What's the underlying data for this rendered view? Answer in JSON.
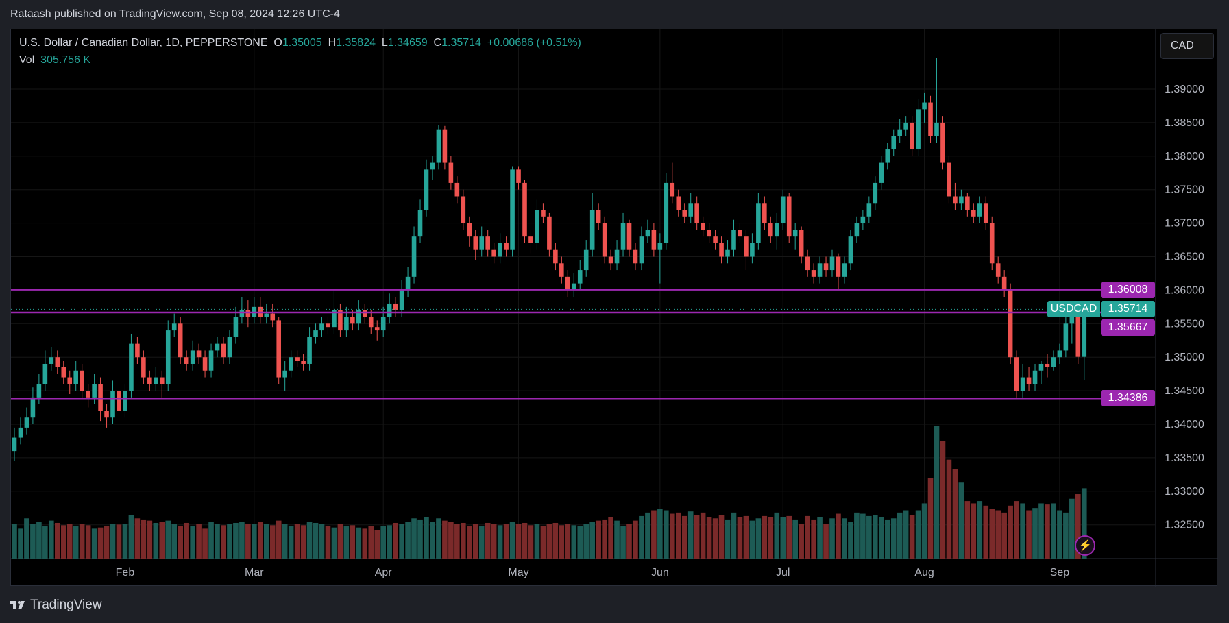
{
  "header": {
    "published": "Rataash published on TradingView.com, Sep 08, 2024 12:26 UTC-4"
  },
  "legend": {
    "symbol": "U.S. Dollar / Canadian Dollar, 1D, PEPPERSTONE",
    "o_label": "O",
    "o": "1.35005",
    "h_label": "H",
    "h": "1.35824",
    "l_label": "L",
    "l": "1.34659",
    "c_label": "C",
    "c": "1.35714",
    "change": "+0.00686 (+0.51%)",
    "vol_label": "Vol",
    "vol": "305.756 K"
  },
  "currency_button": "CAD",
  "symbol_tag": "USDCAD",
  "footer": {
    "brand": "TradingView"
  },
  "colors": {
    "up": "#26a69a",
    "down": "#ef5350",
    "level": "#9c27b0",
    "vol_up": "#1d5b55",
    "vol_down": "#7b2a2a"
  },
  "price_labels": [
    {
      "value": "1.36008",
      "color": "#9c27b0"
    },
    {
      "value": "1.35714",
      "color": "#26a69a"
    },
    {
      "value": "1.35667",
      "color": "#9c27b0"
    },
    {
      "value": "1.34386",
      "color": "#9c27b0"
    }
  ],
  "chart_data": {
    "type": "candlestick",
    "y_ticks": [
      "1.39000",
      "1.38500",
      "1.38000",
      "1.37500",
      "1.37000",
      "1.36500",
      "1.36000",
      "1.35500",
      "1.35000",
      "1.34500",
      "1.34000",
      "1.33500",
      "1.33000",
      "1.32500"
    ],
    "ylim": [
      1.3215,
      1.3975
    ],
    "x_ticks": [
      {
        "label": "Feb",
        "index": 18
      },
      {
        "label": "Mar",
        "index": 39
      },
      {
        "label": "Apr",
        "index": 60
      },
      {
        "label": "May",
        "index": 82
      },
      {
        "label": "Jun",
        "index": 105
      },
      {
        "label": "Jul",
        "index": 125
      },
      {
        "label": "Aug",
        "index": 148
      },
      {
        "label": "Sep",
        "index": 170
      }
    ],
    "levels": [
      1.36008,
      1.35667,
      1.34386
    ],
    "last_price": 1.35714,
    "ohlc": [
      [
        1.336,
        1.3395,
        1.3345,
        1.338
      ],
      [
        1.338,
        1.341,
        1.337,
        1.3395
      ],
      [
        1.3395,
        1.3425,
        1.3385,
        1.341
      ],
      [
        1.341,
        1.3455,
        1.34,
        1.344
      ],
      [
        1.344,
        1.3475,
        1.343,
        1.346
      ],
      [
        1.346,
        1.351,
        1.345,
        1.349
      ],
      [
        1.349,
        1.3515,
        1.348,
        1.35
      ],
      [
        1.35,
        1.351,
        1.3475,
        1.3485
      ],
      [
        1.3485,
        1.3495,
        1.346,
        1.347
      ],
      [
        1.347,
        1.348,
        1.3445,
        1.346
      ],
      [
        1.346,
        1.3495,
        1.345,
        1.348
      ],
      [
        1.348,
        1.349,
        1.344,
        1.345
      ],
      [
        1.345,
        1.346,
        1.3425,
        1.344
      ],
      [
        1.344,
        1.3475,
        1.343,
        1.346
      ],
      [
        1.346,
        1.347,
        1.3405,
        1.342
      ],
      [
        1.342,
        1.343,
        1.3395,
        1.341
      ],
      [
        1.341,
        1.3465,
        1.34,
        1.345
      ],
      [
        1.345,
        1.346,
        1.34,
        1.342
      ],
      [
        1.342,
        1.346,
        1.341,
        1.345
      ],
      [
        1.345,
        1.3535,
        1.344,
        1.352
      ],
      [
        1.352,
        1.353,
        1.349,
        1.35
      ],
      [
        1.35,
        1.351,
        1.346,
        1.347
      ],
      [
        1.347,
        1.348,
        1.345,
        1.346
      ],
      [
        1.346,
        1.3485,
        1.345,
        1.347
      ],
      [
        1.347,
        1.348,
        1.344,
        1.346
      ],
      [
        1.346,
        1.3555,
        1.345,
        1.354
      ],
      [
        1.354,
        1.3565,
        1.353,
        1.355
      ],
      [
        1.355,
        1.356,
        1.349,
        1.35
      ],
      [
        1.35,
        1.351,
        1.348,
        1.349
      ],
      [
        1.349,
        1.3525,
        1.348,
        1.351
      ],
      [
        1.351,
        1.352,
        1.349,
        1.35
      ],
      [
        1.35,
        1.351,
        1.347,
        1.348
      ],
      [
        1.348,
        1.352,
        1.347,
        1.351
      ],
      [
        1.351,
        1.353,
        1.35,
        1.352
      ],
      [
        1.352,
        1.353,
        1.349,
        1.35
      ],
      [
        1.35,
        1.354,
        1.349,
        1.353
      ],
      [
        1.353,
        1.3575,
        1.352,
        1.356
      ],
      [
        1.356,
        1.359,
        1.355,
        1.357
      ],
      [
        1.357,
        1.3585,
        1.3545,
        1.356
      ],
      [
        1.356,
        1.359,
        1.355,
        1.3575
      ],
      [
        1.3575,
        1.359,
        1.355,
        1.356
      ],
      [
        1.356,
        1.358,
        1.355,
        1.3565
      ],
      [
        1.3565,
        1.358,
        1.3545,
        1.3555
      ],
      [
        1.3555,
        1.356,
        1.346,
        1.347
      ],
      [
        1.347,
        1.3495,
        1.345,
        1.348
      ],
      [
        1.348,
        1.351,
        1.347,
        1.35
      ],
      [
        1.35,
        1.351,
        1.3485,
        1.3495
      ],
      [
        1.3495,
        1.3505,
        1.348,
        1.349
      ],
      [
        1.349,
        1.3545,
        1.348,
        1.353
      ],
      [
        1.353,
        1.355,
        1.352,
        1.354
      ],
      [
        1.354,
        1.356,
        1.353,
        1.355
      ],
      [
        1.355,
        1.356,
        1.3535,
        1.3545
      ],
      [
        1.3545,
        1.36,
        1.3535,
        1.357
      ],
      [
        1.357,
        1.358,
        1.353,
        1.354
      ],
      [
        1.354,
        1.3575,
        1.353,
        1.356
      ],
      [
        1.356,
        1.357,
        1.354,
        1.355
      ],
      [
        1.355,
        1.3585,
        1.354,
        1.357
      ],
      [
        1.357,
        1.358,
        1.355,
        1.356
      ],
      [
        1.356,
        1.357,
        1.3535,
        1.3545
      ],
      [
        1.3545,
        1.3555,
        1.3525,
        1.354
      ],
      [
        1.354,
        1.3575,
        1.353,
        1.356
      ],
      [
        1.356,
        1.3595,
        1.355,
        1.358
      ],
      [
        1.358,
        1.359,
        1.356,
        1.357
      ],
      [
        1.357,
        1.3615,
        1.356,
        1.36
      ],
      [
        1.36,
        1.3635,
        1.359,
        1.362
      ],
      [
        1.362,
        1.3695,
        1.361,
        1.368
      ],
      [
        1.368,
        1.3735,
        1.367,
        1.372
      ],
      [
        1.372,
        1.3795,
        1.371,
        1.378
      ],
      [
        1.378,
        1.38,
        1.3765,
        1.379
      ],
      [
        1.379,
        1.3846,
        1.378,
        1.384
      ],
      [
        1.384,
        1.3845,
        1.378,
        1.379
      ],
      [
        1.379,
        1.38,
        1.375,
        1.376
      ],
      [
        1.376,
        1.377,
        1.373,
        1.374
      ],
      [
        1.374,
        1.375,
        1.369,
        1.37
      ],
      [
        1.37,
        1.371,
        1.3665,
        1.368
      ],
      [
        1.368,
        1.369,
        1.3645,
        1.366
      ],
      [
        1.366,
        1.3695,
        1.365,
        1.368
      ],
      [
        1.368,
        1.369,
        1.365,
        1.366
      ],
      [
        1.366,
        1.367,
        1.364,
        1.365
      ],
      [
        1.365,
        1.3685,
        1.364,
        1.367
      ],
      [
        1.367,
        1.368,
        1.365,
        1.366
      ],
      [
        1.366,
        1.3785,
        1.365,
        1.378
      ],
      [
        1.378,
        1.3785,
        1.375,
        1.376
      ],
      [
        1.376,
        1.3765,
        1.367,
        1.368
      ],
      [
        1.368,
        1.369,
        1.3655,
        1.367
      ],
      [
        1.367,
        1.3735,
        1.366,
        1.372
      ],
      [
        1.372,
        1.373,
        1.37,
        1.371
      ],
      [
        1.371,
        1.3715,
        1.365,
        1.366
      ],
      [
        1.366,
        1.367,
        1.363,
        1.364
      ],
      [
        1.364,
        1.365,
        1.361,
        1.362
      ],
      [
        1.362,
        1.363,
        1.359,
        1.36
      ],
      [
        1.36,
        1.3625,
        1.359,
        1.361
      ],
      [
        1.361,
        1.3645,
        1.36,
        1.363
      ],
      [
        1.363,
        1.3675,
        1.362,
        1.366
      ],
      [
        1.366,
        1.3745,
        1.365,
        1.372
      ],
      [
        1.372,
        1.373,
        1.369,
        1.37
      ],
      [
        1.37,
        1.371,
        1.364,
        1.365
      ],
      [
        1.365,
        1.366,
        1.363,
        1.364
      ],
      [
        1.364,
        1.3675,
        1.363,
        1.366
      ],
      [
        1.366,
        1.3715,
        1.365,
        1.37
      ],
      [
        1.37,
        1.3705,
        1.365,
        1.366
      ],
      [
        1.366,
        1.367,
        1.363,
        1.364
      ],
      [
        1.364,
        1.3695,
        1.363,
        1.368
      ],
      [
        1.368,
        1.3705,
        1.367,
        1.369
      ],
      [
        1.369,
        1.37,
        1.365,
        1.366
      ],
      [
        1.366,
        1.3685,
        1.361,
        1.367
      ],
      [
        1.367,
        1.3775,
        1.366,
        1.376
      ],
      [
        1.376,
        1.379,
        1.373,
        1.374
      ],
      [
        1.374,
        1.375,
        1.371,
        1.372
      ],
      [
        1.372,
        1.373,
        1.37,
        1.371
      ],
      [
        1.371,
        1.3745,
        1.37,
        1.373
      ],
      [
        1.373,
        1.374,
        1.369,
        1.37
      ],
      [
        1.37,
        1.371,
        1.368,
        1.369
      ],
      [
        1.369,
        1.37,
        1.367,
        1.368
      ],
      [
        1.368,
        1.369,
        1.366,
        1.367
      ],
      [
        1.367,
        1.368,
        1.364,
        1.365
      ],
      [
        1.365,
        1.3675,
        1.364,
        1.366
      ],
      [
        1.366,
        1.3705,
        1.365,
        1.369
      ],
      [
        1.369,
        1.37,
        1.367,
        1.368
      ],
      [
        1.368,
        1.369,
        1.363,
        1.365
      ],
      [
        1.365,
        1.3685,
        1.364,
        1.367
      ],
      [
        1.367,
        1.3745,
        1.366,
        1.373
      ],
      [
        1.373,
        1.374,
        1.369,
        1.37
      ],
      [
        1.37,
        1.371,
        1.367,
        1.368
      ],
      [
        1.368,
        1.3715,
        1.366,
        1.37
      ],
      [
        1.37,
        1.375,
        1.369,
        1.374
      ],
      [
        1.374,
        1.3745,
        1.367,
        1.368
      ],
      [
        1.368,
        1.37,
        1.366,
        1.369
      ],
      [
        1.369,
        1.3695,
        1.364,
        1.365
      ],
      [
        1.365,
        1.366,
        1.362,
        1.363
      ],
      [
        1.363,
        1.364,
        1.361,
        1.362
      ],
      [
        1.362,
        1.365,
        1.361,
        1.364
      ],
      [
        1.364,
        1.365,
        1.362,
        1.363
      ],
      [
        1.363,
        1.366,
        1.362,
        1.365
      ],
      [
        1.365,
        1.3655,
        1.36,
        1.362
      ],
      [
        1.362,
        1.365,
        1.361,
        1.364
      ],
      [
        1.364,
        1.369,
        1.363,
        1.368
      ],
      [
        1.368,
        1.371,
        1.367,
        1.37
      ],
      [
        1.37,
        1.372,
        1.369,
        1.371
      ],
      [
        1.371,
        1.374,
        1.37,
        1.373
      ],
      [
        1.373,
        1.377,
        1.372,
        1.376
      ],
      [
        1.376,
        1.38,
        1.375,
        1.379
      ],
      [
        1.379,
        1.382,
        1.378,
        1.381
      ],
      [
        1.381,
        1.384,
        1.38,
        1.383
      ],
      [
        1.383,
        1.3855,
        1.382,
        1.384
      ],
      [
        1.384,
        1.386,
        1.383,
        1.385
      ],
      [
        1.385,
        1.386,
        1.38,
        1.381
      ],
      [
        1.381,
        1.3885,
        1.38,
        1.387
      ],
      [
        1.387,
        1.3895,
        1.385,
        1.388
      ],
      [
        1.388,
        1.389,
        1.382,
        1.383
      ],
      [
        1.383,
        1.3947,
        1.382,
        1.385
      ],
      [
        1.385,
        1.386,
        1.378,
        1.379
      ],
      [
        1.379,
        1.38,
        1.373,
        1.374
      ],
      [
        1.374,
        1.376,
        1.372,
        1.373
      ],
      [
        1.373,
        1.375,
        1.372,
        1.374
      ],
      [
        1.374,
        1.3745,
        1.371,
        1.372
      ],
      [
        1.372,
        1.373,
        1.37,
        1.371
      ],
      [
        1.371,
        1.374,
        1.37,
        1.373
      ],
      [
        1.373,
        1.374,
        1.369,
        1.37
      ],
      [
        1.37,
        1.371,
        1.363,
        1.364
      ],
      [
        1.364,
        1.365,
        1.361,
        1.362
      ],
      [
        1.362,
        1.363,
        1.359,
        1.36
      ],
      [
        1.36,
        1.361,
        1.349,
        1.35
      ],
      [
        1.35,
        1.351,
        1.344,
        1.345
      ],
      [
        1.345,
        1.349,
        1.344,
        1.347
      ],
      [
        1.347,
        1.3485,
        1.345,
        1.346
      ],
      [
        1.346,
        1.349,
        1.345,
        1.348
      ],
      [
        1.348,
        1.3495,
        1.346,
        1.349
      ],
      [
        1.349,
        1.3505,
        1.347,
        1.3485
      ],
      [
        1.3485,
        1.351,
        1.348,
        1.35
      ],
      [
        1.35,
        1.352,
        1.349,
        1.351
      ],
      [
        1.351,
        1.3565,
        1.35,
        1.355
      ],
      [
        1.355,
        1.357,
        1.352,
        1.356
      ],
      [
        1.356,
        1.3565,
        1.349,
        1.35005
      ],
      [
        1.35005,
        1.35824,
        1.34659,
        1.35714
      ]
    ],
    "volume_k": [
      150,
      130,
      175,
      150,
      160,
      140,
      165,
      155,
      145,
      150,
      140,
      150,
      145,
      130,
      135,
      140,
      150,
      148,
      150,
      190,
      175,
      170,
      165,
      155,
      160,
      165,
      150,
      140,
      155,
      140,
      150,
      130,
      160,
      150,
      145,
      150,
      155,
      160,
      150,
      150,
      160,
      150,
      145,
      165,
      150,
      140,
      150,
      145,
      160,
      155,
      150,
      140,
      135,
      150,
      140,
      145,
      135,
      130,
      140,
      125,
      140,
      145,
      155,
      150,
      160,
      175,
      170,
      180,
      160,
      175,
      165,
      160,
      150,
      155,
      140,
      150,
      140,
      155,
      150,
      145,
      150,
      160,
      150,
      155,
      145,
      150,
      140,
      150,
      155,
      145,
      150,
      145,
      140,
      150,
      160,
      165,
      170,
      180,
      165,
      140,
      150,
      165,
      185,
      200,
      210,
      215,
      210,
      195,
      200,
      185,
      205,
      190,
      200,
      180,
      175,
      190,
      170,
      200,
      180,
      185,
      165,
      175,
      185,
      180,
      200,
      180,
      185,
      170,
      150,
      185,
      170,
      180,
      150,
      175,
      195,
      175,
      160,
      200,
      195,
      185,
      190,
      180,
      170,
      175,
      200,
      210,
      190,
      210,
      240,
      350,
      575,
      510,
      430,
      390,
      330,
      250,
      240,
      250,
      230,
      215,
      210,
      200,
      230,
      250,
      240,
      210,
      220,
      240,
      235,
      240,
      210,
      200,
      260,
      280,
      305.756
    ]
  }
}
